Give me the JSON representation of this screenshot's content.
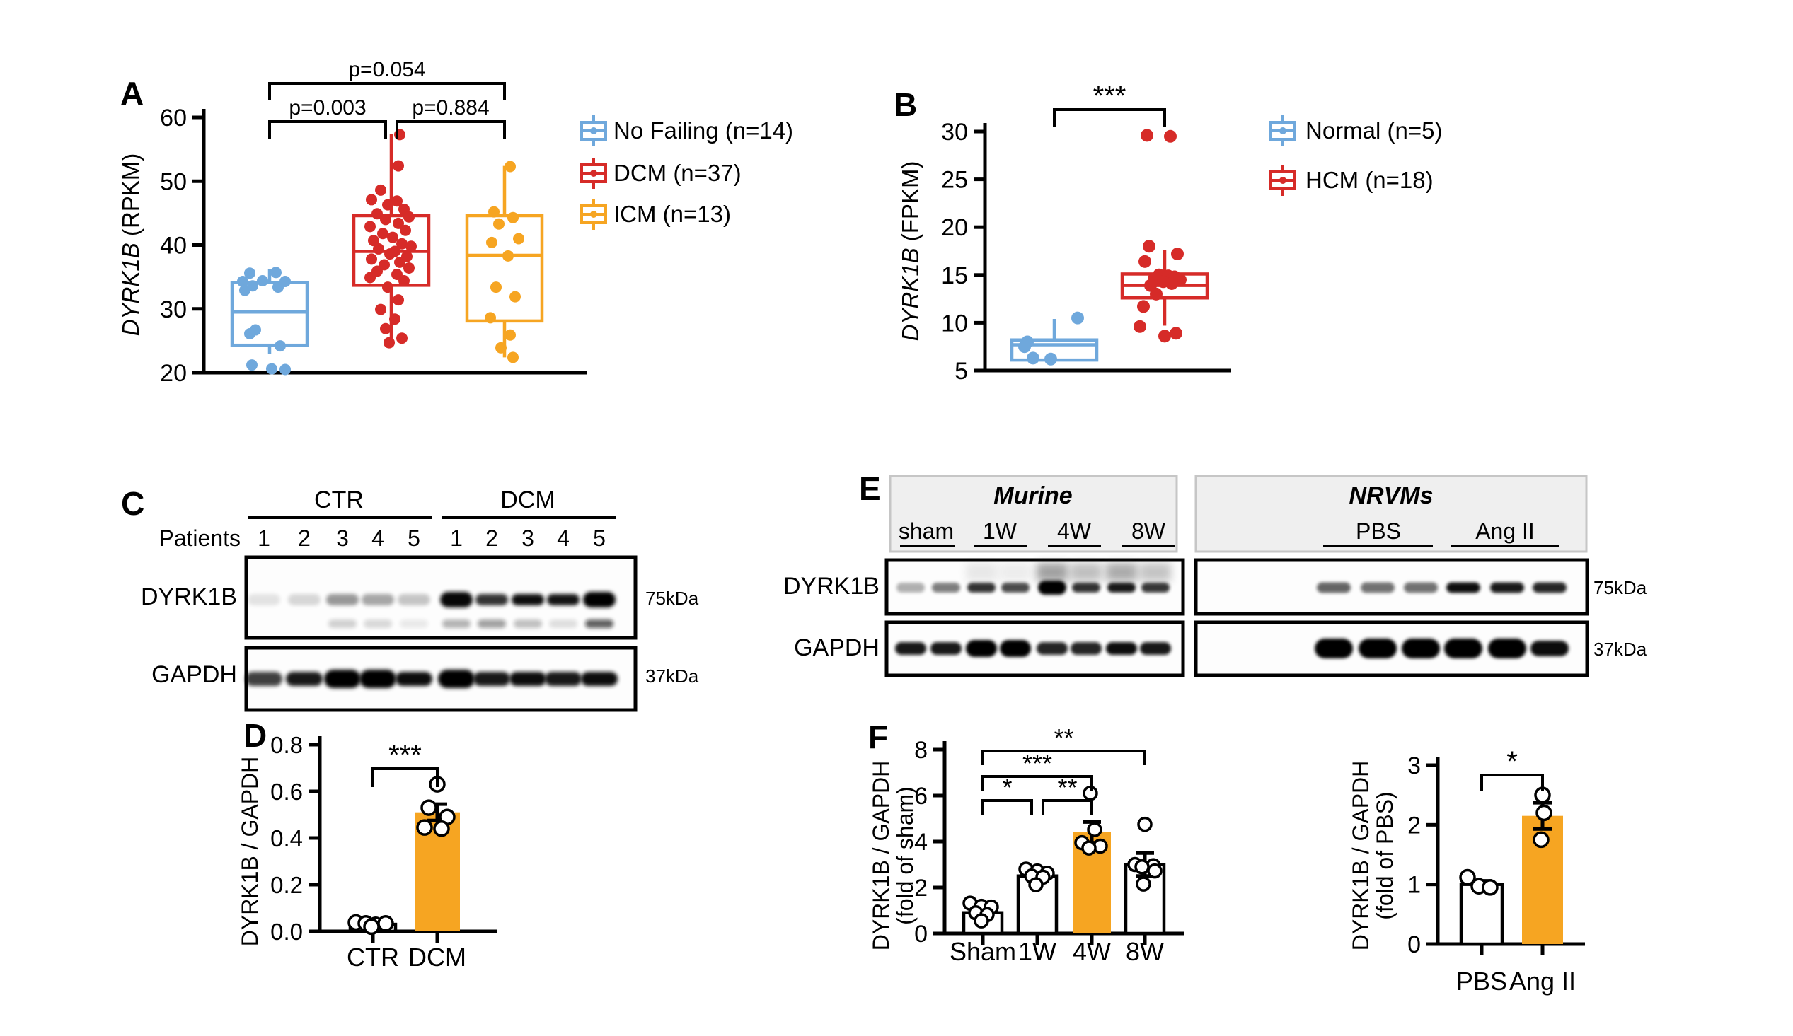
{
  "panel_letters": {
    "A": "A",
    "B": "B",
    "C": "C",
    "D": "D",
    "E": "E",
    "F": "F"
  },
  "colors": {
    "blue": "#6FA8DC",
    "red": "#D62B28",
    "orange": "#F6A522",
    "black": "#000000",
    "header_bg": "#EFEFEF",
    "header_border": "#C6C6C6",
    "bar_white": "#FFFFFF"
  },
  "chart_data": [
    {
      "id": "A",
      "type": "box-scatter",
      "title": "",
      "ylabel_gene": "DYRK1B",
      "ylabel_unit": "(RPKM)",
      "ylim": [
        20,
        60
      ],
      "yticks": [
        20,
        30,
        40,
        50,
        60
      ],
      "groups": [
        {
          "name": "No Failing (n=14)",
          "color": "#6FA8DC",
          "box": {
            "q1": 24.3,
            "median": 29.5,
            "q3": 34.1,
            "lo": 22.9,
            "hi": 36.2
          },
          "points": [
            [
              -28,
              35.6
            ],
            [
              9,
              35.7
            ],
            [
              -38,
              34.3
            ],
            [
              -10,
              34.4
            ],
            [
              22,
              34.3
            ],
            [
              -24,
              33.6
            ],
            [
              12,
              33.4
            ],
            [
              -35,
              32.9
            ],
            [
              -20,
              26.7
            ],
            [
              -28,
              26.1
            ],
            [
              15,
              24.2
            ],
            [
              -25,
              21.2
            ],
            [
              3,
              20.6
            ],
            [
              22,
              20.5
            ]
          ]
        },
        {
          "name": "DCM (n=37)",
          "color": "#D62B28",
          "box": {
            "q1": 33.7,
            "median": 39.0,
            "q3": 44.6,
            "lo": 24.6,
            "hi": 57.4
          },
          "points": [
            [
              12,
              57.3
            ],
            [
              10,
              52.4
            ],
            [
              -15,
              48.6
            ],
            [
              -28,
              47.1
            ],
            [
              8,
              46.9
            ],
            [
              -5,
              46.3
            ],
            [
              18,
              45.6
            ],
            [
              -20,
              44.9
            ],
            [
              25,
              44.4
            ],
            [
              -8,
              44.0
            ],
            [
              10,
              43.4
            ],
            [
              -30,
              42.9
            ],
            [
              20,
              42.3
            ],
            [
              -12,
              41.8
            ],
            [
              2,
              41.2
            ],
            [
              -25,
              40.7
            ],
            [
              15,
              40.2
            ],
            [
              28,
              39.8
            ],
            [
              -18,
              39.4
            ],
            [
              5,
              39.0
            ],
            [
              -2,
              38.6
            ],
            [
              22,
              38.2
            ],
            [
              -28,
              37.8
            ],
            [
              12,
              37.3
            ],
            [
              -10,
              36.9
            ],
            [
              25,
              36.4
            ],
            [
              -20,
              35.9
            ],
            [
              8,
              35.4
            ],
            [
              -30,
              34.9
            ],
            [
              18,
              34.4
            ],
            [
              -5,
              33.4
            ],
            [
              10,
              31.4
            ],
            [
              -15,
              29.9
            ],
            [
              5,
              28.4
            ],
            [
              -8,
              26.9
            ],
            [
              15,
              25.4
            ],
            [
              -3,
              24.7
            ]
          ]
        },
        {
          "name": "ICM (n=13)",
          "color": "#F6A522",
          "box": {
            "q1": 28.1,
            "median": 38.4,
            "q3": 44.6,
            "lo": 22.4,
            "hi": 52.4
          },
          "points": [
            [
              8,
              52.3
            ],
            [
              -15,
              45.2
            ],
            [
              12,
              44.3
            ],
            [
              -8,
              43.3
            ],
            [
              20,
              41.0
            ],
            [
              -18,
              40.4
            ],
            [
              5,
              38.3
            ],
            [
              -12,
              33.4
            ],
            [
              15,
              31.9
            ],
            [
              -20,
              28.6
            ],
            [
              8,
              25.9
            ],
            [
              -5,
              23.9
            ],
            [
              12,
              22.4
            ]
          ]
        }
      ],
      "brackets": [
        {
          "g1": 0,
          "g2": 1,
          "label": "p=0.003",
          "level": 1,
          "o2": -8
        },
        {
          "g1": 1,
          "g2": 2,
          "label": "p=0.884",
          "level": 1,
          "o1": 8
        },
        {
          "g1": 0,
          "g2": 2,
          "label": "p=0.054",
          "level": 2
        }
      ]
    },
    {
      "id": "B",
      "type": "box-scatter",
      "title": "",
      "ylabel_gene": "DYRK1B",
      "ylabel_unit": "(FPKM)",
      "ylim": [
        5,
        30
      ],
      "yticks": [
        5,
        10,
        15,
        20,
        25,
        30
      ],
      "groups": [
        {
          "name": "Normal (n=5)",
          "color": "#6FA8DC",
          "box": {
            "q1": 6.1,
            "median": 7.7,
            "q3": 8.2,
            "lo": 6.1,
            "hi": 10.4
          },
          "points": [
            [
              -38,
              8.0
            ],
            [
              -42,
              7.5
            ],
            [
              -30,
              6.3
            ],
            [
              -5,
              6.2
            ],
            [
              33,
              10.5
            ]
          ]
        },
        {
          "name": "HCM (n=18)",
          "color": "#D62B28",
          "box": {
            "q1": 12.6,
            "median": 13.9,
            "q3": 15.1,
            "lo": 9.7,
            "hi": 17.6
          },
          "points": [
            [
              -25,
              29.6
            ],
            [
              8,
              29.5
            ],
            [
              -22,
              18.0
            ],
            [
              18,
              17.2
            ],
            [
              -28,
              16.4
            ],
            [
              -8,
              15.0
            ],
            [
              5,
              14.9
            ],
            [
              14,
              14.8
            ],
            [
              -15,
              14.6
            ],
            [
              22,
              14.5
            ],
            [
              -2,
              14.3
            ],
            [
              10,
              14.1
            ],
            [
              -20,
              13.9
            ],
            [
              -12,
              13.0
            ],
            [
              -30,
              11.7
            ],
            [
              -35,
              9.6
            ],
            [
              0,
              8.6
            ],
            [
              16,
              8.9
            ]
          ]
        }
      ],
      "brackets": [
        {
          "g1": 0,
          "g2": 1,
          "label": "***",
          "level": 1
        }
      ]
    },
    {
      "id": "D",
      "type": "bar",
      "title": "",
      "ylabel_lines": [
        "DYRK1B / GAPDH"
      ],
      "ylim": [
        0,
        0.8
      ],
      "yticks": [
        "0.0",
        "0.2",
        "0.4",
        "0.6",
        "0.8"
      ],
      "bars": [
        {
          "label": "CTR",
          "value": 0.03,
          "fill": "#FFFFFF",
          "err": 0,
          "points": [
            [
              -24,
              0.038
            ],
            [
              -10,
              0.034
            ],
            [
              4,
              0.028
            ],
            [
              18,
              0.034
            ],
            [
              -2,
              0.02
            ]
          ]
        },
        {
          "label": "DCM",
          "value": 0.51,
          "fill": "#F6A522",
          "err": 0.035,
          "points": [
            [
              0,
              0.63
            ],
            [
              -12,
              0.53
            ],
            [
              14,
              0.49
            ],
            [
              -18,
              0.445
            ],
            [
              6,
              0.44
            ]
          ]
        }
      ],
      "brackets": [
        {
          "g1": 0,
          "g2": 1,
          "label": "***",
          "level": 1
        }
      ]
    },
    {
      "id": "F1",
      "type": "bar",
      "title": "",
      "ylabel_lines": [
        "DYRK1B / GAPDH",
        "(fold of sham)"
      ],
      "ylim": [
        0,
        8
      ],
      "yticks": [
        "0",
        "2",
        "4",
        "6",
        "8"
      ],
      "bars": [
        {
          "label": "Sham",
          "value": 0.9,
          "fill": "#FFFFFF",
          "err": 0.13,
          "points": [
            [
              -18,
              1.32
            ],
            [
              -2,
              1.18
            ],
            [
              12,
              1.15
            ],
            [
              -10,
              0.9
            ],
            [
              6,
              0.82
            ],
            [
              -2,
              0.55
            ]
          ]
        },
        {
          "label": "1W",
          "value": 2.5,
          "fill": "#FFFFFF",
          "err": 0.12,
          "points": [
            [
              -16,
              2.8
            ],
            [
              0,
              2.72
            ],
            [
              14,
              2.62
            ],
            [
              -8,
              2.5
            ],
            [
              8,
              2.45
            ],
            [
              -2,
              2.12
            ]
          ]
        },
        {
          "label": "4W",
          "value": 4.4,
          "fill": "#F6A522",
          "err": 0.45,
          "points": [
            [
              -2,
              6.1
            ],
            [
              4,
              4.52
            ],
            [
              -14,
              3.95
            ],
            [
              12,
              3.8
            ],
            [
              -4,
              3.72
            ]
          ]
        },
        {
          "label": "8W",
          "value": 3.0,
          "fill": "#FFFFFF",
          "err": 0.5,
          "points": [
            [
              0,
              4.75
            ],
            [
              -14,
              3.0
            ],
            [
              12,
              2.95
            ],
            [
              -4,
              2.9
            ],
            [
              14,
              2.72
            ],
            [
              -2,
              2.15
            ]
          ]
        }
      ],
      "brackets": [
        {
          "g1": 0,
          "g2": 1,
          "label": "*",
          "level": 1,
          "o2": -8
        },
        {
          "g1": 1,
          "g2": 2,
          "label": "**",
          "level": 1,
          "o1": 8
        },
        {
          "g1": 0,
          "g2": 2,
          "label": "***",
          "level": 2
        },
        {
          "g1": 0,
          "g2": 3,
          "label": "**",
          "level": 3
        }
      ]
    },
    {
      "id": "F2",
      "type": "bar",
      "title": "",
      "ylabel_lines": [
        "DYRK1B / GAPDH",
        "(fold of PBS)"
      ],
      "ylim": [
        0,
        3
      ],
      "yticks": [
        "0",
        "1",
        "2",
        "3"
      ],
      "bars": [
        {
          "label": "PBS",
          "value": 1.0,
          "fill": "#FFFFFF",
          "err": 0.06,
          "points": [
            [
              -20,
              1.12
            ],
            [
              -4,
              0.97
            ],
            [
              12,
              0.95
            ]
          ]
        },
        {
          "label": "Ang II",
          "value": 2.15,
          "fill": "#F6A522",
          "err": 0.22,
          "points": [
            [
              0,
              2.5
            ],
            [
              2,
              2.2
            ],
            [
              -2,
              1.75
            ]
          ]
        }
      ],
      "brackets": [
        {
          "g1": 0,
          "g2": 1,
          "label": "*",
          "level": 1
        }
      ]
    }
  ],
  "blots": {
    "C": {
      "row_header": "Patients",
      "groups": [
        {
          "name": "CTR",
          "lanes": [
            "1",
            "2",
            "3",
            "4",
            "5"
          ]
        },
        {
          "name": "DCM",
          "lanes": [
            "1",
            "2",
            "3",
            "4",
            "5"
          ]
        }
      ],
      "rows": [
        {
          "label": "DYRK1B",
          "kda": "75kDa",
          "bands": [
            0.1,
            0.15,
            0.4,
            0.34,
            0.22,
            0.97,
            0.8,
            0.95,
            0.92,
            1.0
          ],
          "subbands": [
            0,
            0,
            0.18,
            0.15,
            0.08,
            0.3,
            0.38,
            0.25,
            0.12,
            0.65
          ]
        },
        {
          "label": "GAPDH",
          "kda": "37kDa",
          "bands": [
            0.75,
            0.9,
            1.0,
            1.0,
            0.95,
            1.0,
            0.9,
            0.95,
            0.9,
            0.95
          ]
        }
      ]
    },
    "E": {
      "row_labels": [
        "DYRK1B",
        "GAPDH"
      ],
      "kda_labels": [
        "75kDa",
        "37kDa"
      ],
      "sections": [
        {
          "title": "Murine",
          "groups": [
            {
              "name": "sham"
            },
            {
              "name": "1W"
            },
            {
              "name": "4W"
            },
            {
              "name": "8W"
            }
          ],
          "dyrk1b": [
            0.3,
            0.5,
            0.8,
            0.7,
            1.0,
            0.8,
            0.9,
            0.78
          ],
          "smear": [
            0,
            0,
            0.1,
            0.08,
            0.45,
            0.3,
            0.4,
            0.28
          ],
          "gapdh": [
            0.9,
            0.9,
            1.0,
            1.0,
            0.85,
            0.85,
            0.95,
            0.9
          ]
        },
        {
          "title": "NRVMs",
          "groups": [
            {
              "name": "PBS"
            },
            {
              "name": "Ang II"
            }
          ],
          "dyrk1b": [
            0.6,
            0.55,
            0.55,
            0.95,
            0.9,
            0.85
          ],
          "smear": [
            0,
            0,
            0,
            0,
            0,
            0
          ],
          "gapdh": [
            1.0,
            1.0,
            1.0,
            1.0,
            1.0,
            0.95
          ]
        }
      ]
    }
  }
}
